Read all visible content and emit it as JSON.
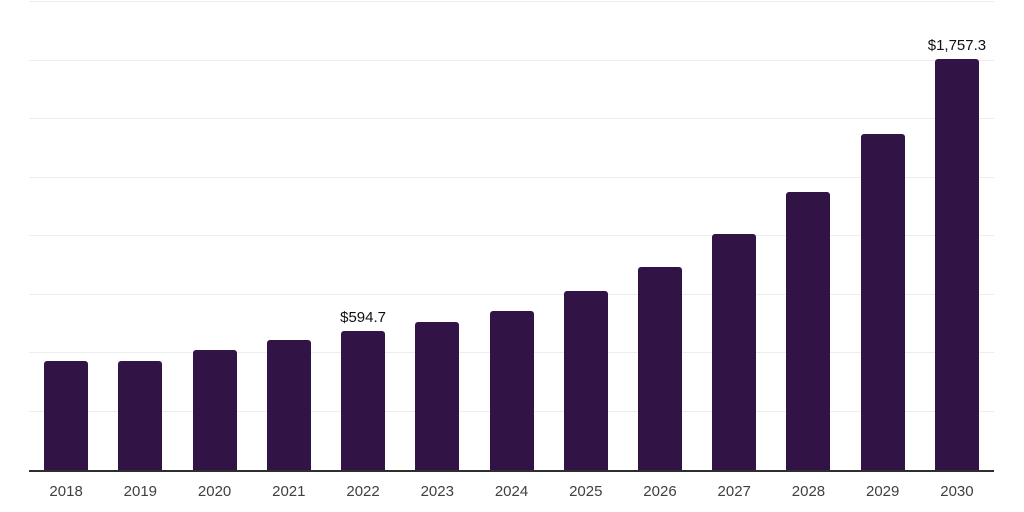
{
  "chart_data": {
    "type": "bar",
    "title": "",
    "xlabel": "",
    "ylabel": "",
    "categories": [
      "2018",
      "2019",
      "2020",
      "2021",
      "2022",
      "2023",
      "2024",
      "2025",
      "2026",
      "2027",
      "2028",
      "2029",
      "2030"
    ],
    "values": [
      468,
      464,
      511,
      554,
      594.7,
      634,
      681,
      765,
      868,
      1007,
      1188,
      1434,
      1757.3
    ],
    "bar_labels": [
      "",
      "",
      "",
      "",
      "$594.7",
      "",
      "",
      "",
      "",
      "",
      "",
      "",
      "$1,757.3"
    ],
    "ylim": [
      0,
      2000
    ],
    "grid_step": 250,
    "grid": true,
    "legend": false,
    "y_tick_labels_visible": false
  },
  "style": {
    "bar_color": "#321345",
    "grid_color": "#ededed",
    "axis_color": "#2e2e2e",
    "tick_label_color": "#404040",
    "value_label_color": "#111111",
    "background_color": "#ffffff"
  }
}
